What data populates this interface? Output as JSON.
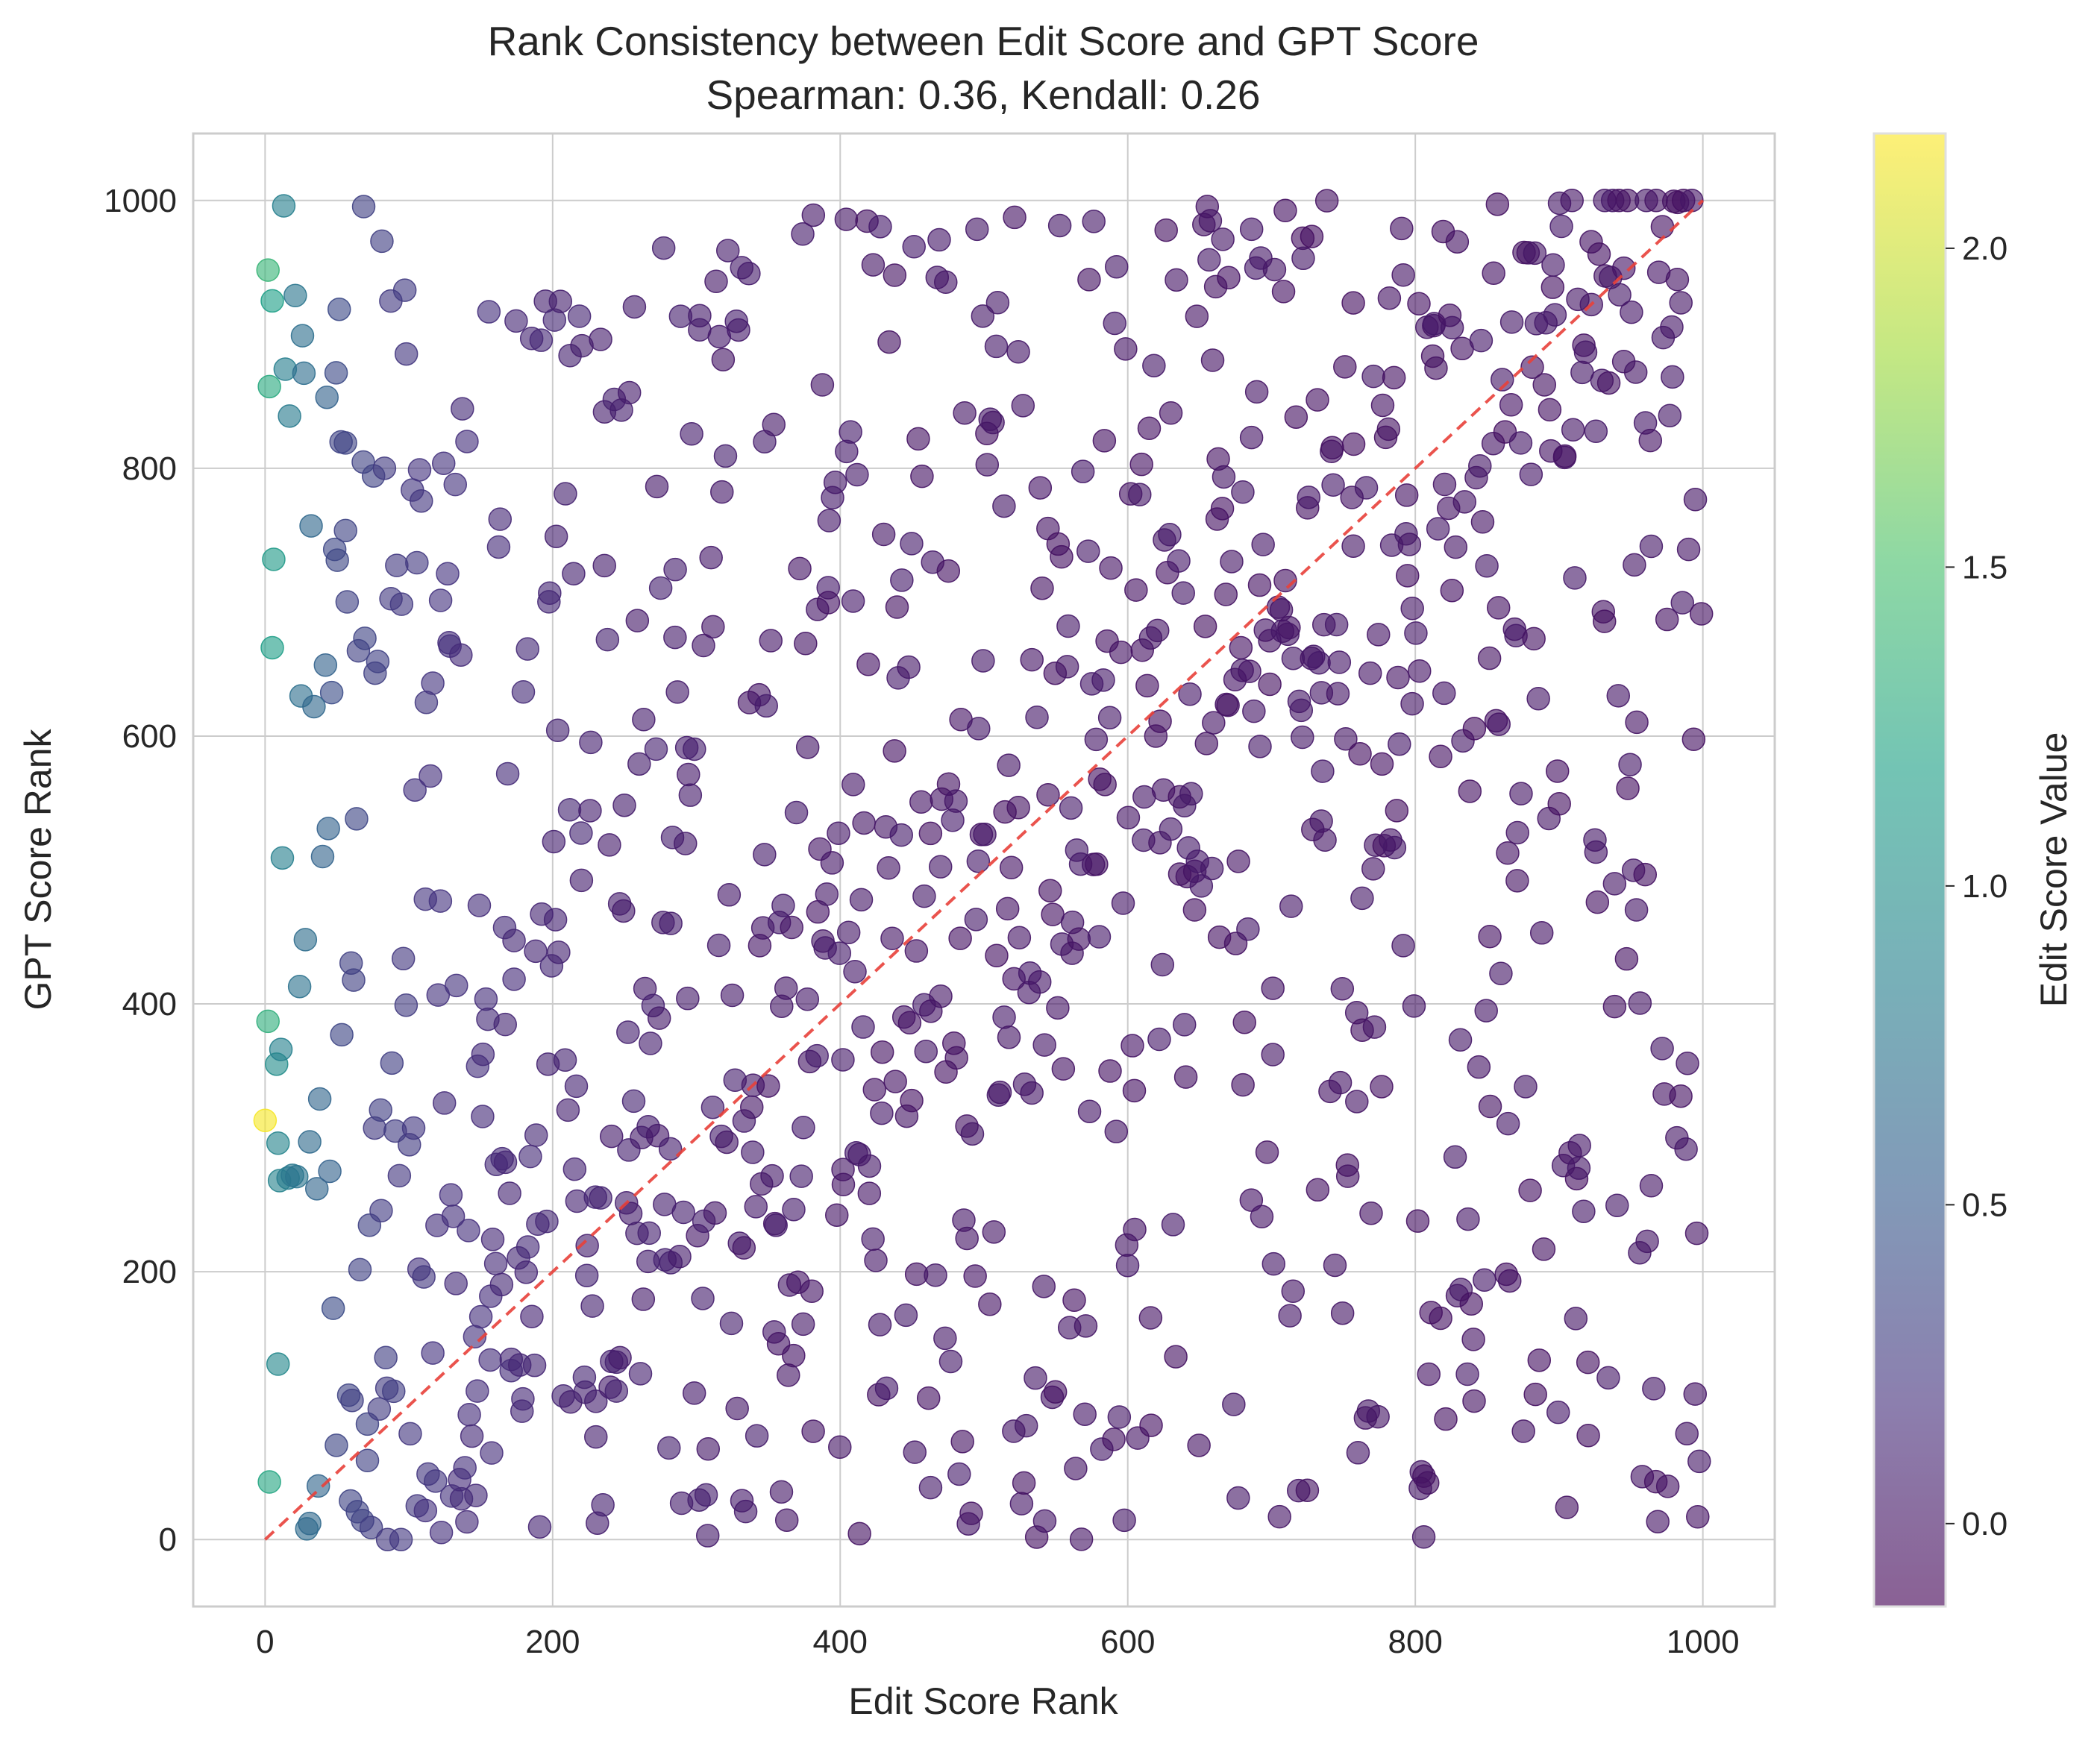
{
  "chart_data": {
    "type": "scatter",
    "title": "Rank Consistency between Edit Score and GPT Score",
    "subtitle": "Spearman: 0.36, Kendall: 0.26",
    "xlabel": "Edit Score Rank",
    "ylabel": "GPT Score Rank",
    "xlim": [
      -50,
      1050
    ],
    "ylim": [
      -50,
      1050
    ],
    "xticks": [
      0,
      200,
      400,
      600,
      800,
      1000
    ],
    "yticks": [
      0,
      200,
      400,
      600,
      800,
      1000
    ],
    "grid": true,
    "reference_line": {
      "from": [
        0,
        0
      ],
      "to": [
        1000,
        1000
      ],
      "color": "#e8413a",
      "style": "dashed"
    },
    "colorbar": {
      "label": "Edit Score Value",
      "colormap": "viridis",
      "range": [
        -0.13,
        2.18
      ],
      "ticks": [
        "0.0",
        "0.5",
        "1.0",
        "1.5",
        "2.0"
      ]
    },
    "highlight_points": [
      {
        "x": 0,
        "y": 313,
        "v": 2.15
      },
      {
        "x": 2,
        "y": 948,
        "v": 1.38
      },
      {
        "x": 2,
        "y": 387,
        "v": 1.32
      },
      {
        "x": 3,
        "y": 861,
        "v": 1.27
      },
      {
        "x": 3,
        "y": 43,
        "v": 1.24
      },
      {
        "x": 5,
        "y": 925,
        "v": 1.18
      },
      {
        "x": 5,
        "y": 666,
        "v": 1.16
      },
      {
        "x": 6,
        "y": 732,
        "v": 1.12
      },
      {
        "x": 8,
        "y": 355,
        "v": 0.98
      },
      {
        "x": 9,
        "y": 131,
        "v": 0.93
      },
      {
        "x": 9,
        "y": 296,
        "v": 0.9
      },
      {
        "x": 10,
        "y": 268,
        "v": 0.88
      },
      {
        "x": 11,
        "y": 366,
        "v": 0.86
      },
      {
        "x": 13,
        "y": 996,
        "v": 0.85
      },
      {
        "x": 12,
        "y": 509,
        "v": 0.84
      },
      {
        "x": 14,
        "y": 874,
        "v": 0.83
      },
      {
        "x": 16,
        "y": 270,
        "v": 0.82
      },
      {
        "x": 17,
        "y": 839,
        "v": 0.8
      },
      {
        "x": 19,
        "y": 272,
        "v": 0.78
      },
      {
        "x": 21,
        "y": 929,
        "v": 0.76
      },
      {
        "x": 22,
        "y": 271,
        "v": 0.74
      },
      {
        "x": 24,
        "y": 413,
        "v": 0.72
      },
      {
        "x": 25,
        "y": 630,
        "v": 0.7
      },
      {
        "x": 26,
        "y": 899,
        "v": 0.69
      },
      {
        "x": 27,
        "y": 871,
        "v": 0.68
      },
      {
        "x": 28,
        "y": 448,
        "v": 0.67
      },
      {
        "x": 29,
        "y": 8,
        "v": 0.66
      },
      {
        "x": 31,
        "y": 297,
        "v": 0.65
      },
      {
        "x": 31,
        "y": 12,
        "v": 0.64
      },
      {
        "x": 32,
        "y": 757,
        "v": 0.63
      },
      {
        "x": 34,
        "y": 622,
        "v": 0.62
      },
      {
        "x": 36,
        "y": 262,
        "v": 0.61
      },
      {
        "x": 37,
        "y": 40,
        "v": 0.6
      },
      {
        "x": 38,
        "y": 329,
        "v": 0.6
      },
      {
        "x": 40,
        "y": 510,
        "v": 0.59
      },
      {
        "x": 42,
        "y": 653,
        "v": 0.58
      },
      {
        "x": 43,
        "y": 853,
        "v": 0.58
      },
      {
        "x": 44,
        "y": 531,
        "v": 0.57
      },
      {
        "x": 45,
        "y": 275,
        "v": 0.57
      }
    ],
    "bulk_points_note": "Remaining points (about 1000 total) are distributed across the 0–1000 rank square, colored by edit score value which decreases with rank."
  }
}
